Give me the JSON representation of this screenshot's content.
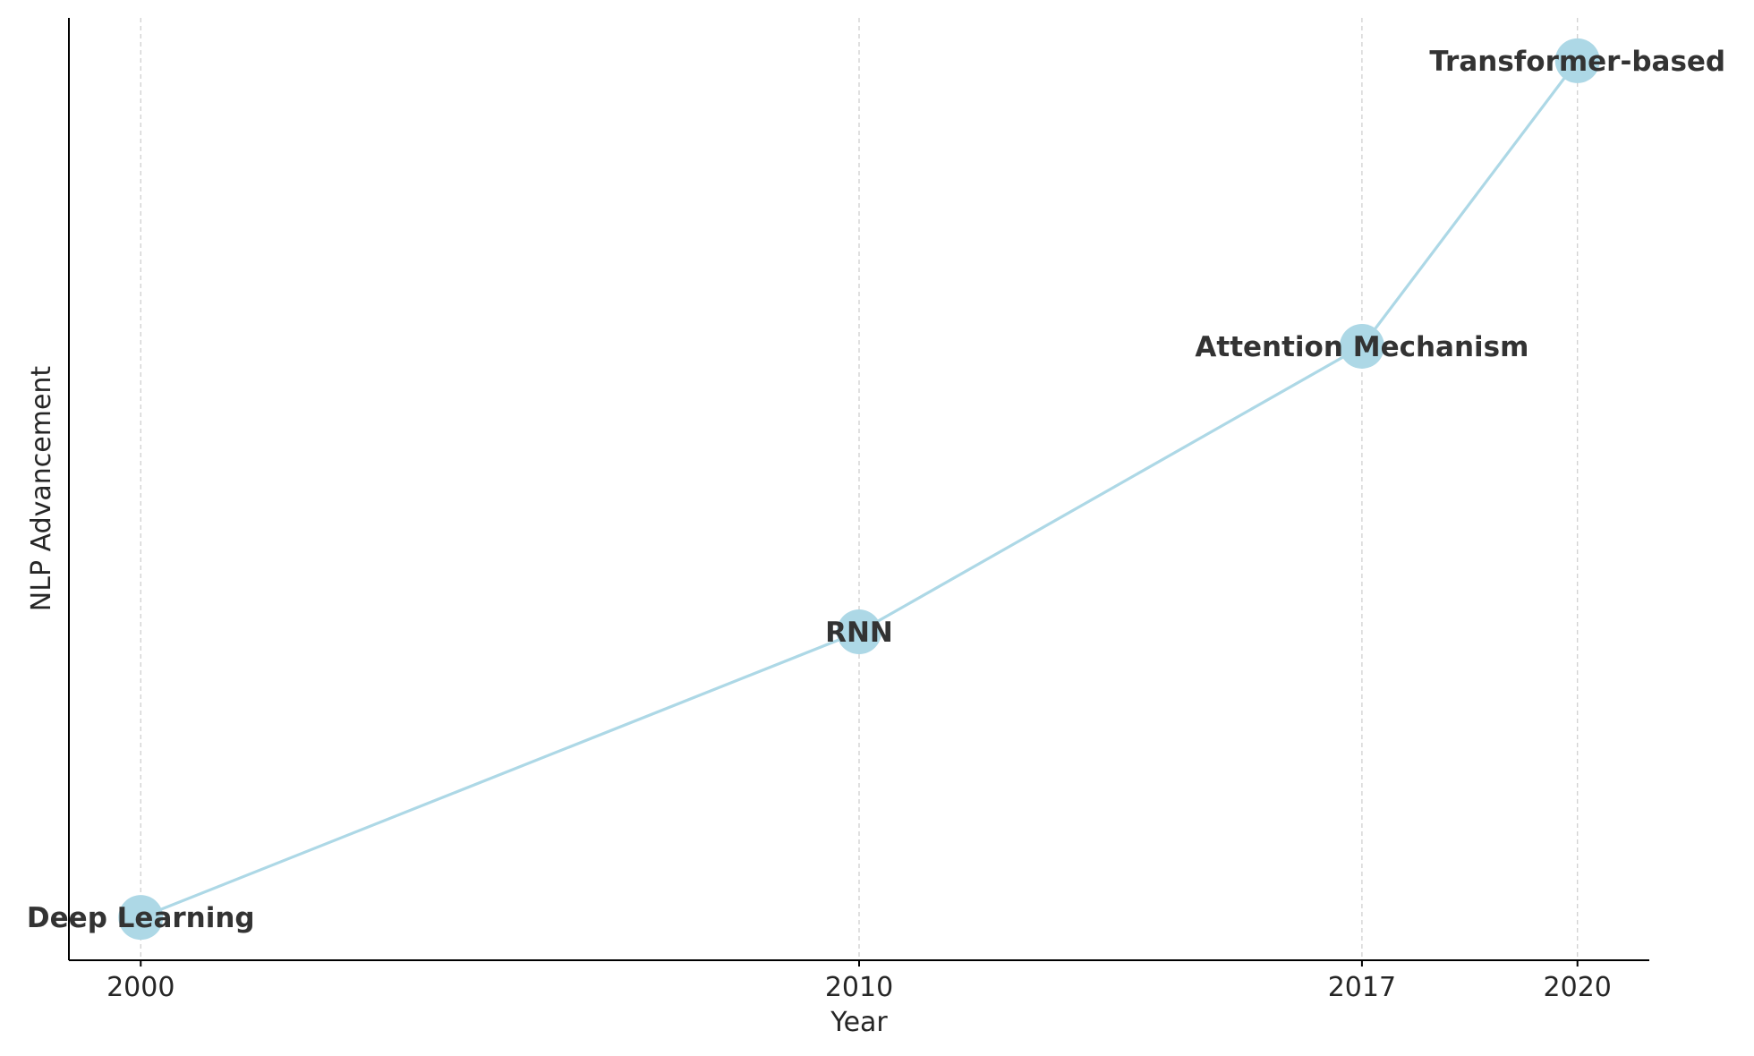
{
  "chart_data": {
    "type": "line",
    "xlabel": "Year",
    "ylabel": "NLP Advancement",
    "x_ticks": [
      "2000",
      "2010",
      "2017",
      "2020"
    ],
    "x": [
      2000,
      2010,
      2017,
      2020
    ],
    "y": [
      1,
      2,
      3,
      4
    ],
    "point_labels": [
      "Deep Learning",
      "RNN",
      "Attention Mechanism",
      "Transformer-based"
    ],
    "xlim": [
      1999,
      2021
    ],
    "ylim": [
      0.85,
      4.15
    ],
    "grid": {
      "x": true,
      "y": false,
      "style": "dashed"
    },
    "y_ticks_visible": false,
    "colors": {
      "line": "#add8e6",
      "marker": "#add8e6",
      "label_text": "#333333",
      "grid": "#cccccc",
      "axis": "#000000"
    }
  }
}
